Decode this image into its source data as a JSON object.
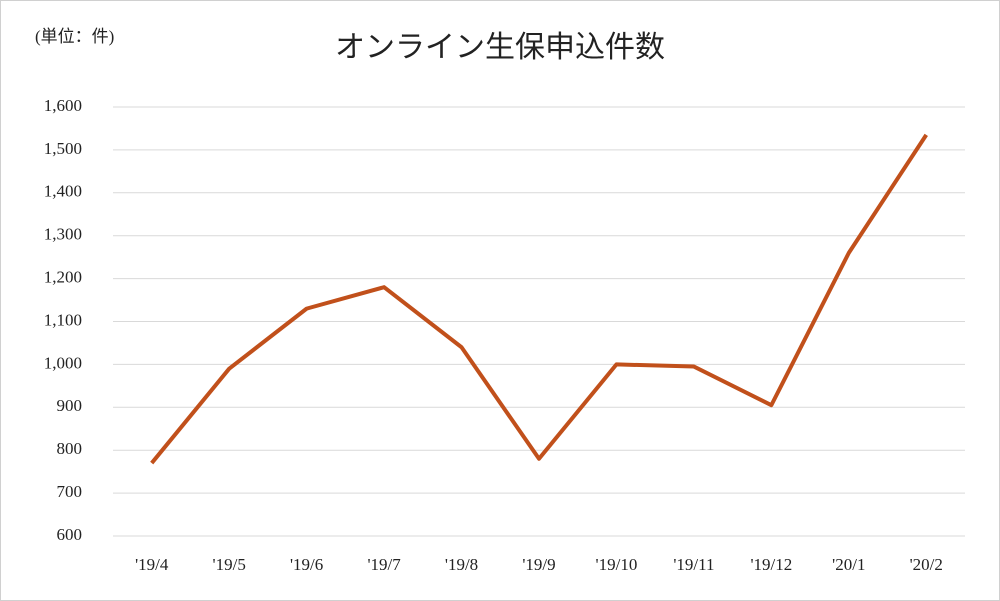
{
  "chart_data": {
    "type": "line",
    "title": "オンライン生保申込件数",
    "unit_label": "(単位：件)",
    "categories": [
      "'19/4",
      "'19/5",
      "'19/6",
      "'19/7",
      "'19/8",
      "'19/9",
      "'19/10",
      "'19/11",
      "'19/12",
      "'20/1",
      "'20/2"
    ],
    "series": [
      {
        "name": "オンライン生保申込件数",
        "color": "#c1501b",
        "values": [
          770,
          990,
          1130,
          1180,
          1040,
          780,
          1000,
          995,
          905,
          1260,
          1535
        ]
      }
    ],
    "ylim": [
      600,
      1600
    ],
    "yticks": [
      600,
      700,
      800,
      900,
      {
        "value": 1000,
        "label": "1,000"
      },
      {
        "value": 1100,
        "label": "1,100"
      },
      {
        "value": 1200,
        "label": "1,200"
      },
      {
        "value": 1300,
        "label": "1,300"
      },
      {
        "value": 1400,
        "label": "1,400"
      },
      {
        "value": 1500,
        "label": "1,500"
      },
      {
        "value": 1600,
        "label": "1,600"
      }
    ],
    "grid": true
  }
}
